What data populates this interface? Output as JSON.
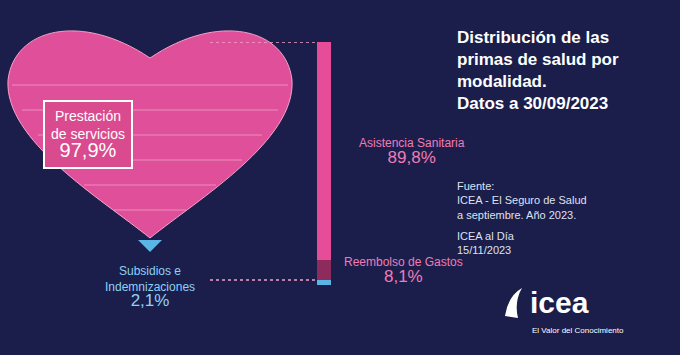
{
  "chart_data": {
    "type": "bar",
    "stacked": true,
    "title": [
      "Distribución de las",
      "primas de salud por",
      "modalidad.",
      "Datos a 30/09/2023"
    ],
    "categories": [
      null
    ],
    "series": [
      {
        "name": "Subsidios e Indemnizaciones",
        "color": "#5ab4e6",
        "values": [
          2.1
        ],
        "value_labels": [
          "2,1%"
        ]
      },
      {
        "name": "Reembolso de Gastos",
        "color": "#8c2b5c",
        "values": [
          8.1
        ],
        "value_labels": [
          "8,1%"
        ]
      },
      {
        "name": "Asistencia Sanitaria",
        "color": "#e64c98",
        "values": [
          89.8
        ],
        "value_labels": [
          "89,8%"
        ]
      }
    ],
    "groups": [
      {
        "name": "Prestación de servicios",
        "value": 97.9,
        "value_label": "97,9%",
        "members": [
          "Reembolso de Gastos",
          "Asistencia Sanitaria"
        ]
      }
    ],
    "ylim": [
      0,
      100
    ],
    "data_labels": true,
    "tick_labels": false,
    "grid": false,
    "annotations": [
      [
        "Fuente:",
        "ICEA - El Seguro de Salud",
        "a septiembre. Año 2023."
      ],
      [
        "ICEA al Día",
        "15/11/2023"
      ]
    ],
    "logo": {
      "text": "icea",
      "tagline": "El Valor del Conocimiento"
    }
  }
}
